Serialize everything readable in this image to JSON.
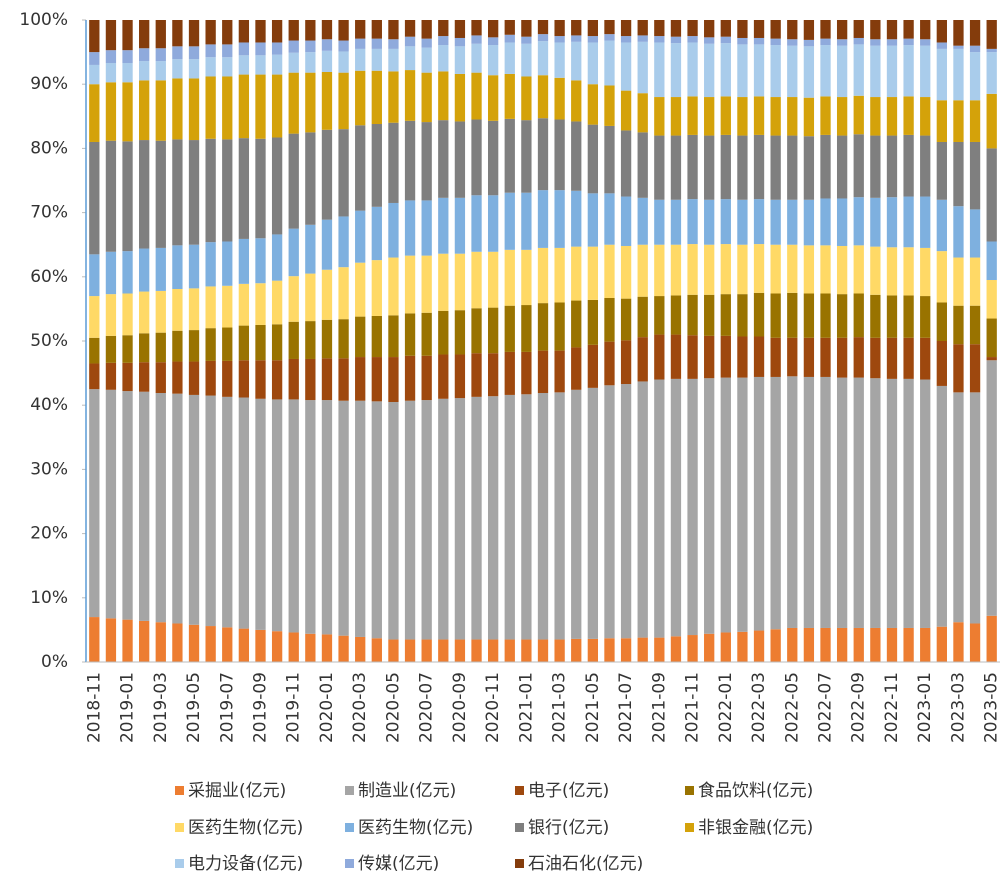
{
  "chart_data": {
    "type": "stacked_bar_100",
    "categories": [
      "2018-11",
      null,
      "2019-01",
      null,
      "2019-03",
      null,
      "2019-05",
      null,
      "2019-07",
      null,
      "2019-09",
      null,
      "2019-11",
      null,
      "2020-01",
      null,
      "2020-03",
      null,
      "2020-05",
      null,
      "2020-07",
      null,
      "2020-09",
      null,
      "2020-11",
      null,
      "2021-01",
      null,
      "2021-03",
      null,
      "2021-05",
      null,
      "2021-07",
      null,
      "2021-09",
      null,
      "2021-11",
      null,
      "2022-01",
      null,
      "2022-03",
      null,
      "2022-05",
      null,
      "2022-07",
      null,
      "2022-09",
      null,
      "2022-11",
      null,
      "2023-01",
      null,
      "2023-03",
      null,
      "2023-05"
    ],
    "ylim": [
      0,
      100
    ],
    "yticks": [
      {
        "value": 0,
        "label": "0%"
      },
      {
        "value": 10,
        "label": "10%"
      },
      {
        "value": 20,
        "label": "20%"
      },
      {
        "value": 30,
        "label": "30%"
      },
      {
        "value": 40,
        "label": "40%"
      },
      {
        "value": 50,
        "label": "50%"
      },
      {
        "value": 60,
        "label": "60%"
      },
      {
        "value": 70,
        "label": "70%"
      },
      {
        "value": 80,
        "label": "80%"
      },
      {
        "value": 90,
        "label": "90%"
      },
      {
        "value": 100,
        "label": "100%"
      }
    ],
    "grid": false,
    "legend": "bottom",
    "series": [
      {
        "name": "采掘业(亿元)",
        "color": "#ED7D31",
        "values": [
          7,
          6.8,
          6.6,
          6.4,
          6.2,
          6,
          5.8,
          5.6,
          5.4,
          5.2,
          5,
          4.8,
          4.6,
          4.4,
          4.3,
          4.1,
          3.9,
          3.7,
          3.5,
          3.5,
          3.5,
          3.5,
          3.5,
          3.5,
          3.5,
          3.5,
          3.5,
          3.5,
          3.5,
          3.6,
          3.6,
          3.7,
          3.7,
          3.8,
          3.8,
          4,
          4.2,
          4.4,
          4.6,
          4.7,
          4.9,
          5.1,
          5.3,
          5.3,
          5.3,
          5.3,
          5.3,
          5.3,
          5.3,
          5.3,
          5.3,
          5.5,
          6.2,
          6,
          7.2
        ]
      },
      {
        "name": "制造业(亿元)",
        "color": "#A5A5A5",
        "values": [
          35.5,
          35.6,
          35.6,
          35.7,
          35.7,
          35.8,
          35.8,
          35.9,
          35.9,
          36,
          36,
          36.1,
          36.3,
          36.4,
          36.5,
          36.6,
          36.8,
          36.9,
          37,
          37.2,
          37.3,
          37.5,
          37.6,
          37.8,
          37.9,
          38.1,
          38.2,
          38.4,
          38.5,
          38.8,
          39.1,
          39.4,
          39.6,
          39.9,
          40.2,
          40.1,
          39.9,
          39.8,
          39.7,
          39.6,
          39.5,
          39.3,
          39.2,
          39.1,
          39.1,
          39,
          39,
          38.9,
          38.8,
          38.8,
          38.7,
          37.5,
          35.8,
          36,
          39.8
        ]
      },
      {
        "name": "电子(亿元)",
        "color": "#9E480E",
        "values": [
          4,
          4.2,
          4.4,
          4.6,
          4.8,
          5,
          5.2,
          5.4,
          5.6,
          5.8,
          6,
          6.1,
          6.3,
          6.4,
          6.5,
          6.6,
          6.8,
          6.9,
          7,
          7,
          6.9,
          6.9,
          6.8,
          6.8,
          6.7,
          6.7,
          6.6,
          6.6,
          6.5,
          6.6,
          6.7,
          6.8,
          6.8,
          6.9,
          7,
          6.9,
          6.8,
          6.6,
          6.5,
          6.4,
          6.3,
          6.1,
          6,
          6.1,
          6.1,
          6.2,
          6.3,
          6.3,
          6.4,
          6.4,
          6.5,
          7,
          7.5,
          7.5,
          0.5
        ]
      },
      {
        "name": "食品饮料(亿元)",
        "color": "#997300",
        "values": [
          4,
          4.2,
          4.3,
          4.5,
          4.6,
          4.8,
          4.9,
          5.1,
          5.2,
          5.4,
          5.5,
          5.6,
          5.8,
          5.9,
          6,
          6.1,
          6.3,
          6.4,
          6.5,
          6.6,
          6.7,
          6.8,
          6.9,
          7,
          7.1,
          7.2,
          7.3,
          7.4,
          7.5,
          7.3,
          7,
          6.8,
          6.5,
          6.3,
          6,
          6.1,
          6.3,
          6.4,
          6.5,
          6.6,
          6.8,
          6.9,
          7,
          6.9,
          6.9,
          6.8,
          6.8,
          6.7,
          6.6,
          6.6,
          6.5,
          6,
          6,
          6,
          6
        ]
      },
      {
        "name": "医药生物(亿元)",
        "color": "#FFD966",
        "values": [
          6.5,
          6.5,
          6.5,
          6.5,
          6.5,
          6.5,
          6.5,
          6.5,
          6.5,
          6.5,
          6.5,
          6.8,
          7.1,
          7.4,
          7.8,
          8.1,
          8.4,
          8.7,
          9,
          9,
          8.9,
          8.9,
          8.8,
          8.8,
          8.7,
          8.7,
          8.6,
          8.6,
          8.5,
          8.4,
          8.3,
          8.3,
          8.2,
          8.1,
          8,
          7.9,
          7.9,
          7.8,
          7.8,
          7.7,
          7.6,
          7.6,
          7.5,
          7.5,
          7.5,
          7.5,
          7.5,
          7.5,
          7.5,
          7.5,
          7.5,
          8,
          7.5,
          7.5,
          6
        ]
      },
      {
        "name": "医药生物(亿元)",
        "color": "#7EB0DF",
        "values": [
          6.5,
          6.6,
          6.6,
          6.7,
          6.7,
          6.8,
          6.8,
          6.9,
          6.9,
          7,
          7,
          7.2,
          7.4,
          7.6,
          7.8,
          7.9,
          8.1,
          8.3,
          8.5,
          8.6,
          8.6,
          8.7,
          8.7,
          8.8,
          8.8,
          8.9,
          8.9,
          9,
          9,
          8.7,
          8.3,
          8,
          7.7,
          7.3,
          7,
          7,
          7,
          7,
          7,
          7,
          7,
          7,
          7,
          7.1,
          7.3,
          7.4,
          7.5,
          7.6,
          7.8,
          7.9,
          8,
          8,
          8,
          7.5,
          6
        ]
      },
      {
        "name": "银行(亿元)",
        "color": "#7F7F7F",
        "values": [
          17.5,
          17.3,
          17.1,
          16.9,
          16.7,
          16.5,
          16.3,
          16.1,
          15.9,
          15.7,
          15.5,
          15.1,
          14.8,
          14.4,
          14,
          13.6,
          13.3,
          12.9,
          12.5,
          12.4,
          12.2,
          12.1,
          11.9,
          11.8,
          11.6,
          11.5,
          11.3,
          11.2,
          11,
          10.8,
          10.7,
          10.5,
          10.3,
          10.2,
          10,
          10,
          10,
          10,
          10,
          10,
          10,
          10,
          10,
          9.9,
          9.9,
          9.8,
          9.8,
          9.7,
          9.6,
          9.6,
          9.5,
          9,
          10,
          10.5,
          14.5
        ]
      },
      {
        "name": "非银金融(亿元)",
        "color": "#D4A20A",
        "values": [
          9,
          9.1,
          9.2,
          9.3,
          9.4,
          9.5,
          9.6,
          9.7,
          9.8,
          9.9,
          10,
          9.8,
          9.5,
          9.3,
          9,
          8.8,
          8.5,
          8.3,
          8,
          7.9,
          7.7,
          7.6,
          7.4,
          7.3,
          7.1,
          7,
          6.8,
          6.7,
          6.5,
          6.4,
          6.3,
          6.3,
          6.2,
          6.1,
          6,
          6,
          6,
          6,
          6,
          6,
          6,
          6,
          6,
          6,
          6,
          6,
          6,
          6,
          6,
          6,
          6,
          6.5,
          6.5,
          6.5,
          8.5
        ]
      },
      {
        "name": "电力设备(亿元)",
        "color": "#A9CCEB",
        "values": [
          3,
          3,
          3,
          3,
          3,
          3,
          3,
          3,
          3,
          3,
          3,
          3.1,
          3.1,
          3.2,
          3.3,
          3.3,
          3.4,
          3.4,
          3.5,
          3.7,
          3.9,
          4.1,
          4.3,
          4.5,
          4.7,
          4.9,
          5.1,
          5.3,
          5.5,
          6,
          6.5,
          7,
          7.5,
          8,
          8.5,
          8.4,
          8.4,
          8.3,
          8.3,
          8.2,
          8.1,
          8.1,
          8,
          8,
          8,
          8,
          8,
          8,
          8,
          8,
          8,
          8,
          8,
          7.5,
          6.5
        ]
      },
      {
        "name": "传媒(亿元)",
        "color": "#8FAADC",
        "values": [
          2,
          2,
          2,
          2,
          2,
          2,
          2,
          2,
          2,
          2,
          2,
          1.9,
          1.9,
          1.8,
          1.8,
          1.7,
          1.6,
          1.6,
          1.5,
          1.5,
          1.4,
          1.4,
          1.3,
          1.3,
          1.2,
          1.2,
          1.1,
          1.1,
          1,
          1,
          1,
          1,
          1,
          1,
          1,
          1,
          1,
          1,
          1,
          1,
          1,
          1,
          1,
          1,
          1,
          1,
          1,
          1,
          1,
          1,
          1,
          1,
          0.5,
          1,
          0.5
        ]
      },
      {
        "name": "石油石化(亿元)",
        "color": "#843C0C",
        "values": [
          5,
          4.7,
          4.7,
          4.4,
          4.4,
          4.1,
          4.1,
          3.8,
          3.8,
          3.5,
          3.5,
          3.5,
          3.2,
          3.2,
          3,
          3.2,
          2.9,
          2.9,
          3,
          2.6,
          2.9,
          2.5,
          2.8,
          2.4,
          2.7,
          2.3,
          2.6,
          2.2,
          2.5,
          2.4,
          2.5,
          2.2,
          2.5,
          2.4,
          2.5,
          2.6,
          2.5,
          2.7,
          2.6,
          2.8,
          2.8,
          2.9,
          3,
          3.1,
          2.9,
          3,
          2.8,
          3,
          3,
          2.9,
          3,
          3.5,
          4,
          4,
          4.5
        ]
      }
    ]
  }
}
